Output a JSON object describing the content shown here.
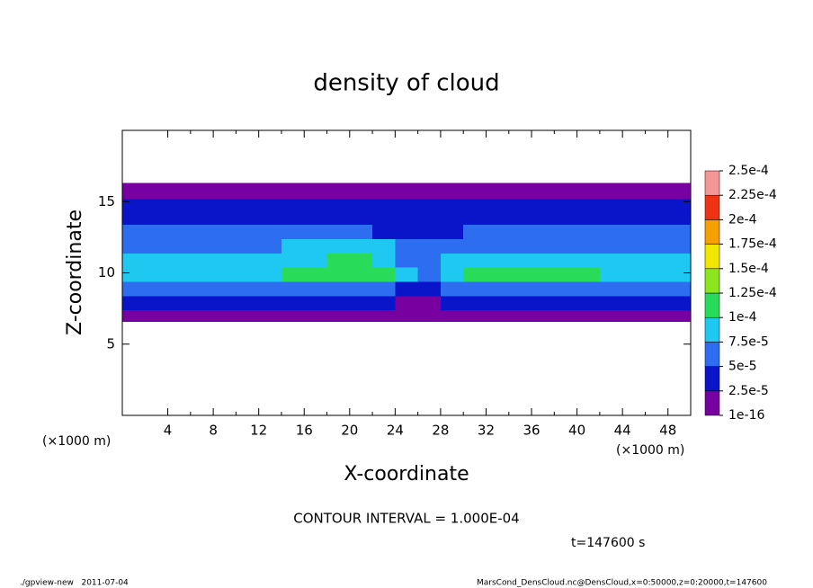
{
  "chart_data": {
    "type": "heatmap",
    "title": "density of cloud",
    "xlabel": "X-coordinate",
    "ylabel": "Z-coordinate",
    "x_unit_labels": [
      "(×1000 m)",
      "(×1000 m)"
    ],
    "xlim": [
      0,
      50
    ],
    "xticks": [
      4,
      8,
      12,
      16,
      20,
      24,
      28,
      32,
      36,
      40,
      44,
      48
    ],
    "ylim": [
      0,
      20
    ],
    "yticks": [
      5,
      10,
      15
    ],
    "x_edges": [
      0,
      2,
      4,
      6,
      8,
      10,
      12,
      14,
      16,
      18,
      20,
      22,
      24,
      26,
      28,
      30,
      32,
      34,
      36,
      38,
      40,
      42,
      44,
      46,
      48,
      50
    ],
    "z_edges": [
      6.6,
      7.4,
      8.4,
      9.4,
      10.4,
      11.4,
      12.4,
      13.4,
      14.4,
      15.2,
      15.8,
      16.3
    ],
    "values": [
      [
        1e-05,
        1e-05,
        1e-05,
        1e-05,
        1e-05,
        1e-05,
        1e-05,
        1e-05,
        1e-05,
        1e-05,
        1e-05,
        1e-05,
        1e-05,
        1e-05,
        1e-05,
        1e-05,
        1e-05,
        1e-05,
        1e-05,
        1e-05,
        1e-05,
        1e-05,
        1e-05,
        1e-05,
        1e-05
      ],
      [
        3e-05,
        3e-05,
        3e-05,
        3e-05,
        3e-05,
        3e-05,
        3e-05,
        3e-05,
        3e-05,
        3e-05,
        3e-05,
        3e-05,
        2e-05,
        2e-05,
        3e-05,
        3e-05,
        3e-05,
        3e-05,
        3e-05,
        3e-05,
        3e-05,
        3e-05,
        3e-05,
        3e-05,
        3e-05
      ],
      [
        6e-05,
        6e-05,
        6e-05,
        6e-05,
        6e-05,
        6e-05,
        6e-05,
        6e-05,
        7e-05,
        7e-05,
        7e-05,
        7e-05,
        4e-05,
        4e-05,
        6e-05,
        7e-05,
        7e-05,
        7e-05,
        7e-05,
        7e-05,
        6e-05,
        6e-05,
        6e-05,
        6e-05,
        6e-05
      ],
      [
        9e-05,
        9e-05,
        9.5e-05,
        9e-05,
        9.5e-05,
        9e-05,
        9.5e-05,
        0.0001,
        0.00011,
        0.00012,
        0.000115,
        0.0001,
        8e-05,
        7e-05,
        9e-05,
        0.0001,
        0.000105,
        0.000105,
        0.000105,
        0.0001,
        0.0001,
        9.5e-05,
        9e-05,
        9e-05,
        8.5e-05
      ],
      [
        8e-05,
        8e-05,
        8e-05,
        8e-05,
        8e-05,
        8e-05,
        8e-05,
        8e-05,
        9e-05,
        0.000105,
        0.000105,
        9e-05,
        6e-05,
        6e-05,
        8e-05,
        8e-05,
        8e-05,
        8e-05,
        8e-05,
        8e-05,
        8e-05,
        8e-05,
        8e-05,
        8e-05,
        8e-05
      ],
      [
        6.5e-05,
        6.5e-05,
        6.5e-05,
        6.5e-05,
        6.5e-05,
        6.5e-05,
        6.5e-05,
        7.5e-05,
        7.5e-05,
        7.5e-05,
        7.5e-05,
        7.5e-05,
        5e-05,
        5e-05,
        5e-05,
        6.5e-05,
        6.5e-05,
        6.5e-05,
        6.5e-05,
        6.5e-05,
        6.5e-05,
        6.5e-05,
        6.5e-05,
        6.5e-05,
        6.5e-05
      ],
      [
        5e-05,
        5e-05,
        5e-05,
        5e-05,
        5e-05,
        5e-05,
        5e-05,
        5e-05,
        5e-05,
        5e-05,
        5e-05,
        3.5e-05,
        3.5e-05,
        3.5e-05,
        3.5e-05,
        5e-05,
        5e-05,
        5e-05,
        5e-05,
        5e-05,
        5.5e-05,
        5.5e-05,
        5.5e-05,
        5.5e-05,
        5.5e-05
      ],
      [
        4.5e-05,
        4.5e-05,
        4.5e-05,
        4.5e-05,
        4.5e-05,
        4.5e-05,
        4.5e-05,
        4e-05,
        4e-05,
        4e-05,
        4e-05,
        4e-05,
        4e-05,
        4e-05,
        4e-05,
        4e-05,
        4e-05,
        4e-05,
        4e-05,
        4e-05,
        4e-05,
        4e-05,
        4e-05,
        4e-05,
        4e-05
      ],
      [
        3e-05,
        3e-05,
        3e-05,
        3e-05,
        3e-05,
        3e-05,
        3e-05,
        3e-05,
        3e-05,
        3e-05,
        3e-05,
        3e-05,
        3e-05,
        3e-05,
        3e-05,
        3e-05,
        3e-05,
        3e-05,
        3e-05,
        3e-05,
        3e-05,
        3e-05,
        3e-05,
        3e-05,
        3e-05
      ],
      [
        2e-05,
        2e-05,
        2e-05,
        2e-05,
        2e-05,
        2e-05,
        2e-05,
        2e-05,
        2e-05,
        2e-05,
        2e-05,
        2e-05,
        2e-05,
        2e-05,
        2e-05,
        2e-05,
        2e-05,
        2e-05,
        2e-05,
        2e-05,
        2e-05,
        2e-05,
        2e-05,
        2e-05,
        2e-05
      ],
      [
        1e-05,
        1e-05,
        1e-05,
        1e-05,
        1e-05,
        1e-05,
        1e-05,
        1e-05,
        1e-05,
        1e-05,
        1e-05,
        1e-05,
        1e-05,
        1e-05,
        1e-05,
        1e-05,
        1e-05,
        1e-05,
        1e-05,
        1e-05,
        1e-05,
        1e-05,
        1e-05,
        1e-05,
        1e-05
      ]
    ],
    "colorbar": {
      "levels": [
        {
          "value": 1e-16,
          "label": "1e-16"
        },
        {
          "value": 2.5e-05,
          "label": "2.5e-5"
        },
        {
          "value": 5e-05,
          "label": "5e-5"
        },
        {
          "value": 7.5e-05,
          "label": "7.5e-5"
        },
        {
          "value": 0.0001,
          "label": "1e-4"
        },
        {
          "value": 0.000125,
          "label": "1.25e-4"
        },
        {
          "value": 0.00015,
          "label": "1.5e-4"
        },
        {
          "value": 0.000175,
          "label": "1.75e-4"
        },
        {
          "value": 0.0002,
          "label": "2e-4"
        },
        {
          "value": 0.000225,
          "label": "2.25e-4"
        },
        {
          "value": 0.00025,
          "label": "2.5e-4"
        }
      ],
      "colors": [
        "#7800a0",
        "#0a14c8",
        "#2d6ef0",
        "#1ec8f0",
        "#28dc5a",
        "#8ce61e",
        "#f0e600",
        "#f5a000",
        "#f03214",
        "#f59696"
      ]
    },
    "annotations": {
      "contour": "CONTOUR INTERVAL = 1.000E-04",
      "time": "t=147600 s",
      "footer_left": "./gpview-new   2011-07-04",
      "footer_right": "MarsCond_DensCloud.nc@DensCloud,x=0:50000,z=0:20000,t=147600"
    }
  }
}
